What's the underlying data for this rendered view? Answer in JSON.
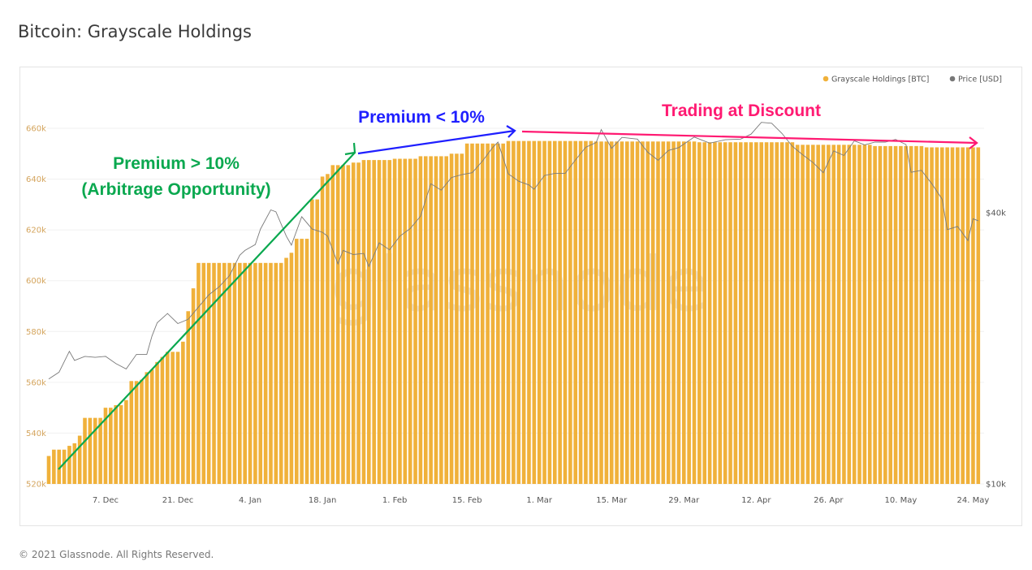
{
  "page": {
    "title": "Bitcoin: Grayscale Holdings",
    "footer": "© 2021 Glassnode. All Rights Reserved.",
    "watermark": "glassnode"
  },
  "chart_data": {
    "type": "bar",
    "title": "Bitcoin: Grayscale Holdings",
    "x_range": [
      "2020-11-26",
      "2021-05-25"
    ],
    "x_tick_labels": [
      "7. Dec",
      "21. Dec",
      "4. Jan",
      "18. Jan",
      "1. Feb",
      "15. Feb",
      "1. Mar",
      "15. Mar",
      "29. Mar",
      "12. Apr",
      "26. Apr",
      "10. May",
      "24. May"
    ],
    "x_tick_dates": [
      "2020-12-07",
      "2020-12-21",
      "2021-01-04",
      "2021-01-18",
      "2021-02-01",
      "2021-02-15",
      "2021-03-01",
      "2021-03-15",
      "2021-03-29",
      "2021-04-12",
      "2021-04-26",
      "2021-05-10",
      "2021-05-24"
    ],
    "y_left": {
      "ylim": [
        520000,
        660000
      ],
      "tick_labels": [
        "520k",
        "540k",
        "560k",
        "580k",
        "600k",
        "620k",
        "640k",
        "660k"
      ],
      "ticks": [
        520000,
        540000,
        560000,
        580000,
        600000,
        620000,
        640000,
        660000
      ]
    },
    "y_right": {
      "scale": "log",
      "tick_labels": [
        "$10k",
        "$40k"
      ],
      "ticks": [
        10000,
        40000
      ]
    },
    "grid": true,
    "legend": {
      "placement": "top-right",
      "entries": [
        {
          "name": "Grayscale Holdings [BTC]",
          "color": "#f0b13a"
        },
        {
          "name": "Price [USD]",
          "color": "#777777"
        }
      ]
    },
    "series": [
      {
        "name": "Grayscale Holdings [BTC]",
        "type": "bar",
        "axis": "left",
        "color": "#f0b13a",
        "steps": [
          [
            "2020-11-26",
            531000
          ],
          [
            "2020-11-27",
            533500
          ],
          [
            "2020-11-30",
            535000
          ],
          [
            "2020-12-01",
            536000
          ],
          [
            "2020-12-02",
            539000
          ],
          [
            "2020-12-03",
            546000
          ],
          [
            "2020-12-07",
            550000
          ],
          [
            "2020-12-09",
            551000
          ],
          [
            "2020-12-11",
            553000
          ],
          [
            "2020-12-12",
            560500
          ],
          [
            "2020-12-14",
            561000
          ],
          [
            "2020-12-15",
            564000
          ],
          [
            "2020-12-16",
            565000
          ],
          [
            "2020-12-17",
            568000
          ],
          [
            "2020-12-18",
            570000
          ],
          [
            "2020-12-19",
            572000
          ],
          [
            "2020-12-22",
            576000
          ],
          [
            "2020-12-23",
            588000
          ],
          [
            "2020-12-24",
            597000
          ],
          [
            "2020-12-25",
            607000
          ],
          [
            "2021-01-11",
            609000
          ],
          [
            "2021-01-12",
            611000
          ],
          [
            "2021-01-13",
            616500
          ],
          [
            "2021-01-16",
            632000
          ],
          [
            "2021-01-18",
            641000
          ],
          [
            "2021-01-19",
            642000
          ],
          [
            "2021-01-20",
            645500
          ],
          [
            "2021-01-24",
            646500
          ],
          [
            "2021-01-26",
            647500
          ],
          [
            "2021-02-01",
            648000
          ],
          [
            "2021-02-06",
            649000
          ],
          [
            "2021-02-12",
            650000
          ],
          [
            "2021-02-15",
            654000
          ],
          [
            "2021-02-23",
            655000
          ],
          [
            "2021-03-12",
            654800
          ],
          [
            "2021-04-01",
            654500
          ],
          [
            "2021-04-20",
            653500
          ],
          [
            "2021-05-05",
            653000
          ],
          [
            "2021-05-15",
            652500
          ]
        ]
      },
      {
        "name": "Price [USD]",
        "type": "line",
        "axis": "right",
        "color": "#777777",
        "points": [
          [
            "2020-11-26",
            17100
          ],
          [
            "2020-11-28",
            17700
          ],
          [
            "2020-11-30",
            19700
          ],
          [
            "2020-12-01",
            18800
          ],
          [
            "2020-12-03",
            19200
          ],
          [
            "2020-12-05",
            19100
          ],
          [
            "2020-12-07",
            19200
          ],
          [
            "2020-12-09",
            18500
          ],
          [
            "2020-12-11",
            18000
          ],
          [
            "2020-12-13",
            19400
          ],
          [
            "2020-12-15",
            19400
          ],
          [
            "2020-12-16",
            21300
          ],
          [
            "2020-12-17",
            22800
          ],
          [
            "2020-12-19",
            23900
          ],
          [
            "2020-12-21",
            22700
          ],
          [
            "2020-12-23",
            23200
          ],
          [
            "2020-12-25",
            24700
          ],
          [
            "2020-12-27",
            26300
          ],
          [
            "2020-12-29",
            27400
          ],
          [
            "2020-12-31",
            29000
          ],
          [
            "2021-01-02",
            32200
          ],
          [
            "2021-01-03",
            33000
          ],
          [
            "2021-01-05",
            34000
          ],
          [
            "2021-01-06",
            36800
          ],
          [
            "2021-01-08",
            40600
          ],
          [
            "2021-01-09",
            40200
          ],
          [
            "2021-01-11",
            35500
          ],
          [
            "2021-01-12",
            33900
          ],
          [
            "2021-01-14",
            39200
          ],
          [
            "2021-01-16",
            36800
          ],
          [
            "2021-01-18",
            36200
          ],
          [
            "2021-01-19",
            35500
          ],
          [
            "2021-01-21",
            30800
          ],
          [
            "2021-01-22",
            33000
          ],
          [
            "2021-01-24",
            32300
          ],
          [
            "2021-01-26",
            32500
          ],
          [
            "2021-01-27",
            30400
          ],
          [
            "2021-01-29",
            34300
          ],
          [
            "2021-01-31",
            33100
          ],
          [
            "2021-02-02",
            35500
          ],
          [
            "2021-02-04",
            36900
          ],
          [
            "2021-02-06",
            39300
          ],
          [
            "2021-02-08",
            46400
          ],
          [
            "2021-02-10",
            44900
          ],
          [
            "2021-02-12",
            47900
          ],
          [
            "2021-02-14",
            48600
          ],
          [
            "2021-02-16",
            49100
          ],
          [
            "2021-02-18",
            52100
          ],
          [
            "2021-02-20",
            55900
          ],
          [
            "2021-02-21",
            57400
          ],
          [
            "2021-02-23",
            48800
          ],
          [
            "2021-02-25",
            47000
          ],
          [
            "2021-02-27",
            46100
          ],
          [
            "2021-02-28",
            45100
          ],
          [
            "2021-03-02",
            48400
          ],
          [
            "2021-03-04",
            48900
          ],
          [
            "2021-03-06",
            48900
          ],
          [
            "2021-03-08",
            52400
          ],
          [
            "2021-03-10",
            55900
          ],
          [
            "2021-03-12",
            57300
          ],
          [
            "2021-03-13",
            61200
          ],
          [
            "2021-03-15",
            55600
          ],
          [
            "2021-03-17",
            58800
          ],
          [
            "2021-03-20",
            58300
          ],
          [
            "2021-03-22",
            54500
          ],
          [
            "2021-03-24",
            52300
          ],
          [
            "2021-03-26",
            55000
          ],
          [
            "2021-03-28",
            55800
          ],
          [
            "2021-03-31",
            58900
          ],
          [
            "2021-04-03",
            57100
          ],
          [
            "2021-04-06",
            58100
          ],
          [
            "2021-04-09",
            58300
          ],
          [
            "2021-04-11",
            59800
          ],
          [
            "2021-04-13",
            63500
          ],
          [
            "2021-04-15",
            63200
          ],
          [
            "2021-04-17",
            60000
          ],
          [
            "2021-04-19",
            56200
          ],
          [
            "2021-04-21",
            53800
          ],
          [
            "2021-04-23",
            51700
          ],
          [
            "2021-04-25",
            49100
          ],
          [
            "2021-04-27",
            54900
          ],
          [
            "2021-04-29",
            53600
          ],
          [
            "2021-05-01",
            57800
          ],
          [
            "2021-05-03",
            56600
          ],
          [
            "2021-05-05",
            57400
          ],
          [
            "2021-05-07",
            57400
          ],
          [
            "2021-05-09",
            58200
          ],
          [
            "2021-05-11",
            56700
          ],
          [
            "2021-05-12",
            49200
          ],
          [
            "2021-05-14",
            49700
          ],
          [
            "2021-05-16",
            46400
          ],
          [
            "2021-05-18",
            42900
          ],
          [
            "2021-05-19",
            36700
          ],
          [
            "2021-05-21",
            37300
          ],
          [
            "2021-05-23",
            34700
          ],
          [
            "2021-05-24",
            38800
          ],
          [
            "2021-05-25",
            38400
          ]
        ]
      }
    ],
    "annotations": [
      {
        "text": "Premium > 10%",
        "color": "#0aa84f"
      },
      {
        "text": "(Arbitrage Opportunity)",
        "color": "#0aa84f"
      },
      {
        "text": "Premium < 10%",
        "color": "#1f1fff"
      },
      {
        "text": "Trading at Discount",
        "color": "#ff1a72"
      }
    ]
  }
}
